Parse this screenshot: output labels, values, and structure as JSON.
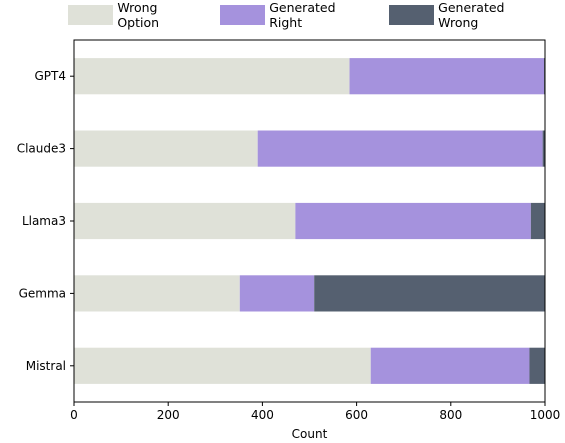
{
  "chart_data": {
    "type": "bar",
    "orientation": "horizontal",
    "stacked": true,
    "categories": [
      "GPT4",
      "Claude3",
      "Llama3",
      "Gemma",
      "Mistral"
    ],
    "series": [
      {
        "name": "Wrong Option",
        "color": "#dfe1d8",
        "values": [
          585,
          390,
          470,
          352,
          630
        ]
      },
      {
        "name": "Generated Right",
        "color": "#a592dd",
        "values": [
          413,
          605,
          500,
          158,
          337
        ]
      },
      {
        "name": "Generated Wrong",
        "color": "#556070",
        "values": [
          2,
          5,
          30,
          490,
          33
        ]
      }
    ],
    "xlabel": "Count",
    "ylabel": "",
    "xlim": [
      0,
      1000
    ],
    "xticks": [
      "0",
      "200",
      "400",
      "600",
      "800",
      "1000"
    ],
    "legend_position": "top"
  }
}
